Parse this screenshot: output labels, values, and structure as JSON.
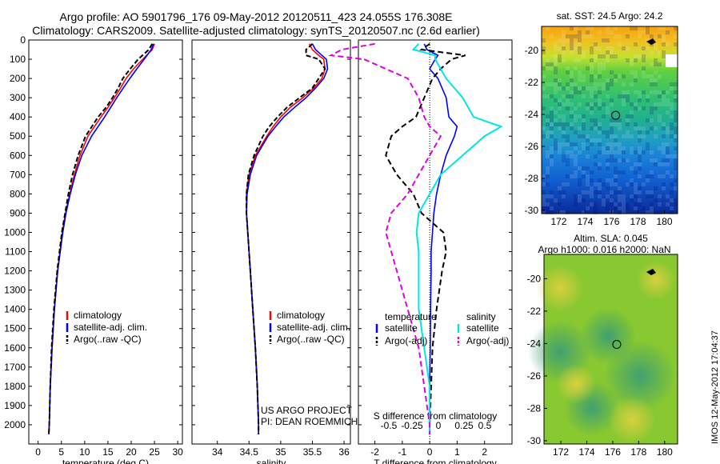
{
  "header": {
    "line1": "Argo profile: AO 5901796_176 09-May-2012 20120511_423 24.055S 176.308E",
    "line2": "Climatology: CARS2009. Satellite-adjusted climatology: synTS_20120507.nc (2.6d earlier)"
  },
  "colors": {
    "climatology": "#ff0000",
    "satellite": "#0000ff",
    "argo": "#000000",
    "sat_salinity": "#00e5e5",
    "argo_salinity_adj": "#e000e0"
  },
  "chart_data": [
    {
      "type": "line",
      "id": "temperature",
      "xlabel": "temperature (deg C)",
      "ylabel": "",
      "xlim": [
        -2,
        31
      ],
      "ylim": [
        2100,
        0
      ],
      "xticks": [
        0,
        5,
        10,
        15,
        20,
        25,
        30
      ],
      "yticks": [
        0,
        100,
        200,
        300,
        400,
        500,
        600,
        700,
        800,
        900,
        1000,
        1100,
        1200,
        1300,
        1400,
        1500,
        1600,
        1700,
        1800,
        1900,
        2000
      ],
      "depth": [
        20,
        50,
        100,
        150,
        200,
        250,
        300,
        350,
        400,
        500,
        600,
        700,
        800,
        900,
        1000,
        1200,
        1400,
        1600,
        1800,
        2000,
        2050
      ],
      "legend": [
        "climatology",
        "satellite-adj. clim.",
        "Argo(..raw -QC)"
      ],
      "series": [
        {
          "name": "climatology",
          "values": [
            25,
            24.5,
            22.5,
            20.5,
            18.9,
            17.7,
            16.4,
            15,
            13.5,
            10.7,
            9,
            7.8,
            6.8,
            5.9,
            5.2,
            4.2,
            3.5,
            3,
            2.6,
            2.4,
            2.3
          ]
        },
        {
          "name": "satellite-adj. clim.",
          "values": [
            24.8,
            24.3,
            22.8,
            21.2,
            19.7,
            18.3,
            16.9,
            15.6,
            14.3,
            11.5,
            9.4,
            8,
            6.9,
            6,
            5.3,
            4.2,
            3.5,
            3,
            2.6,
            2.4,
            2.3
          ]
        },
        {
          "name": "Argo(..raw -QC)",
          "values": [
            24.5,
            23.8,
            21.5,
            19.8,
            18.2,
            17.2,
            16,
            14.6,
            12.9,
            10.2,
            8.6,
            7.4,
            6.5,
            5.8,
            5.1,
            4.1,
            3.4,
            2.9,
            2.6,
            2.4,
            2.3
          ]
        }
      ]
    },
    {
      "type": "line",
      "id": "salinity",
      "xlabel": "salinity",
      "ylabel": "",
      "xlim": [
        33.6,
        36.1
      ],
      "ylim": [
        2100,
        0
      ],
      "xticks": [
        34,
        34.5,
        35,
        35.5,
        36
      ],
      "yticks": [
        0,
        100,
        200,
        300,
        400,
        500,
        600,
        700,
        800,
        900,
        1000,
        1100,
        1200,
        1300,
        1400,
        1500,
        1600,
        1700,
        1800,
        1900,
        2000
      ],
      "depth": [
        20,
        50,
        80,
        100,
        150,
        200,
        250,
        300,
        350,
        400,
        450,
        500,
        600,
        700,
        800,
        900,
        1000,
        1200,
        1400,
        1600,
        1800,
        2000,
        2050
      ],
      "legend": [
        "climatology",
        "satellite-adj. clim.",
        "Argo(..raw -QC)"
      ],
      "series": [
        {
          "name": "climatology",
          "values": [
            35.45,
            35.5,
            35.6,
            35.68,
            35.7,
            35.65,
            35.52,
            35.35,
            35.15,
            35,
            34.88,
            34.78,
            34.6,
            34.5,
            34.46,
            34.46,
            34.48,
            34.52,
            34.56,
            34.6,
            34.63,
            34.65,
            34.65
          ]
        },
        {
          "name": "satellite-adj. clim.",
          "values": [
            35.5,
            35.55,
            35.65,
            35.72,
            35.74,
            35.68,
            35.55,
            35.4,
            35.22,
            35.05,
            34.92,
            34.8,
            34.62,
            34.52,
            34.47,
            34.46,
            34.48,
            34.52,
            34.56,
            34.6,
            34.63,
            34.65,
            34.65
          ]
        },
        {
          "name": "Argo(..raw -QC)",
          "values": [
            35.5,
            35.4,
            35.4,
            35.6,
            35.7,
            35.6,
            35.5,
            35.3,
            35.1,
            34.95,
            34.82,
            34.72,
            34.58,
            34.49,
            34.46,
            34.46,
            34.48,
            34.52,
            34.56,
            34.6,
            34.63,
            34.65,
            34.65
          ]
        }
      ],
      "note1": "US ARGO PROJECT",
      "note2": "PI: DEAN ROEMMICH"
    },
    {
      "type": "line",
      "id": "difference",
      "xlabel": "T difference from climatology",
      "xlabel_top": "S difference from climatology",
      "xlim": [
        -2.6,
        3
      ],
      "ylim": [
        2100,
        0
      ],
      "xticks_T": [
        -2,
        -1,
        0,
        1,
        2
      ],
      "xticks_S": [
        {
          "v": -0.5,
          "l": "-0.5"
        },
        {
          "v": -0.25,
          "l": "-0.25"
        },
        {
          "v": 0,
          "l": "0"
        },
        {
          "v": 0.25,
          "l": "0.25"
        },
        {
          "v": 0.5,
          "l": "0.5"
        }
      ],
      "depth": [
        20,
        50,
        80,
        100,
        150,
        200,
        300,
        400,
        450,
        500,
        600,
        700,
        800,
        900,
        1000,
        1100,
        1200,
        1400,
        1600,
        1800,
        2000,
        2050
      ],
      "legend_left_title": "temperature",
      "legend_right_title": "salinity",
      "legend": [
        "satellite",
        "Argo(-adj)",
        "satellite",
        "Argo(-adj)"
      ],
      "series": [
        {
          "name": "satellite",
          "values": [
            -0.2,
            -0.1,
            0.3,
            0.2,
            0,
            0.3,
            0.6,
            0.7,
            1,
            0.9,
            0.6,
            0.4,
            0.25,
            0.15,
            0.1,
            0.05,
            0.05,
            0.03,
            0.02,
            0,
            0,
            0
          ]
        },
        {
          "name": "Argo(-adj)",
          "values": [
            0,
            -0.3,
            1.3,
            0.8,
            0.4,
            0.1,
            -0.2,
            -0.5,
            -1,
            -1.4,
            -1.6,
            -1.2,
            -0.6,
            -0.3,
            0.5,
            0.6,
            0.45,
            0.25,
            0.1,
            0.05,
            0,
            0
          ]
        },
        {
          "name": "satellite",
          "values": [
            -0.1,
            -0.15,
            0.05,
            0.05,
            0.1,
            0.15,
            0.3,
            0.4,
            0.65,
            0.5,
            0.3,
            0.1,
            0,
            -0.1,
            -0.12,
            -0.1,
            -0.1,
            -0.1,
            -0.05,
            0,
            0,
            0
          ]
        },
        {
          "name": "Argo(-adj)",
          "values": [
            -0.5,
            -0.8,
            -0.9,
            -0.6,
            -0.4,
            -0.2,
            -0.1,
            -0.05,
            0,
            0.1,
            0,
            -0.1,
            -0.2,
            -0.35,
            -0.4,
            -0.35,
            -0.3,
            -0.2,
            -0.1,
            -0.05,
            0,
            0
          ]
        }
      ]
    },
    {
      "type": "heatmap",
      "id": "sst_map",
      "title": "sat. SST: 24.5  Argo: 24.2",
      "xticks": [
        172,
        174,
        176,
        178,
        180
      ],
      "yticks": [
        -20,
        -22,
        -24,
        -26,
        -28,
        -30
      ],
      "xlim": [
        170.7,
        181
      ],
      "ylim": [
        -30.2,
        -18.5
      ],
      "marker": {
        "lon": 176.308,
        "lat": -24.055
      }
    },
    {
      "type": "heatmap",
      "id": "sla_map",
      "title_line1": "Altim. SLA: 0.045",
      "title_line2": "Argo h1000: 0.016  h2000: NaN",
      "xticks": [
        172,
        174,
        176,
        178,
        180
      ],
      "yticks": [
        -20,
        -22,
        -24,
        -26,
        -28,
        -30
      ],
      "xlim": [
        170.7,
        181
      ],
      "ylim": [
        -30.2,
        -18.5
      ],
      "marker": {
        "lon": 176.308,
        "lat": -24.055
      }
    }
  ],
  "footer": {
    "stamp": "IMOS 12-May-2012 17:04:37"
  }
}
